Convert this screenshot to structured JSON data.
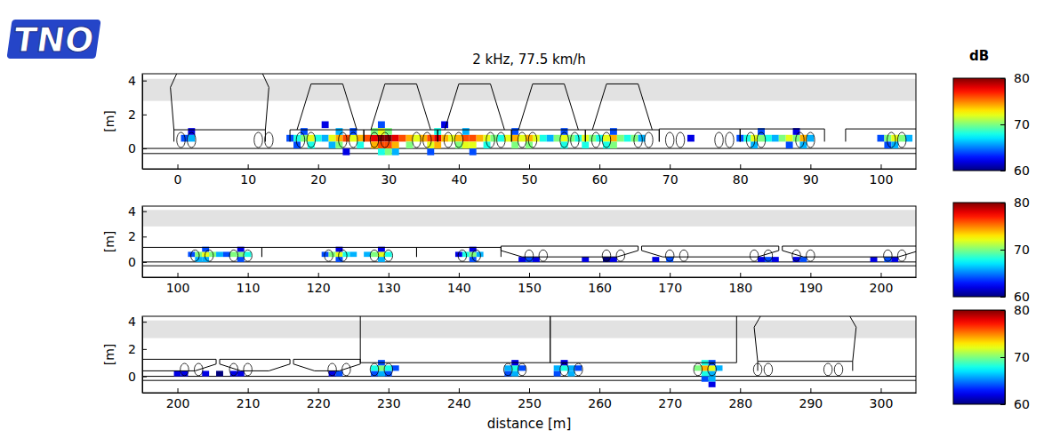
{
  "logo": "TNO",
  "chart_data": [
    {
      "type": "heatmap",
      "title": "2 kHz, 77.5 km/h",
      "y_label": "[m]",
      "xlim": [
        -5,
        105
      ],
      "xticks": [
        0,
        10,
        20,
        30,
        40,
        50,
        60,
        70,
        80,
        90,
        100
      ],
      "ylim": [
        -1.2,
        4.4
      ],
      "yticks": [
        0,
        2,
        4
      ],
      "colorbar_title": "dB",
      "colorbar_range": [
        60,
        80
      ],
      "colorbar_ticks": [
        60,
        70,
        80
      ],
      "cell_size": [
        1,
        0.4
      ],
      "shaded_band": [
        2.8,
        4.1
      ],
      "rails": [
        0,
        -0.3
      ],
      "vehicles": [
        {
          "type": "loco",
          "start": -3,
          "end": 13.5,
          "axles": [
            0.5,
            2,
            11.5,
            13
          ]
        },
        {
          "type": "hopper",
          "start": 16,
          "end": 26.5,
          "axles": [
            17.5,
            19,
            23.5,
            25
          ]
        },
        {
          "type": "hopper",
          "start": 26.5,
          "end": 37,
          "axles": [
            28,
            29.5,
            34,
            35.5
          ]
        },
        {
          "type": "hopper",
          "start": 37,
          "end": 47.5,
          "axles": [
            38.5,
            40,
            44.5,
            46
          ]
        },
        {
          "type": "hopper",
          "start": 47.5,
          "end": 58,
          "axles": [
            49,
            50.5,
            55,
            56.5
          ]
        },
        {
          "type": "hopper",
          "start": 58,
          "end": 68.5,
          "axles": [
            59.5,
            61,
            65.5,
            67
          ]
        },
        {
          "type": "flat",
          "start": 68.5,
          "end": 80,
          "axles": [
            70,
            71.5,
            77,
            78.5
          ]
        },
        {
          "type": "flat",
          "start": 80,
          "end": 92,
          "axles": [
            81.5,
            83,
            88.5,
            90
          ]
        },
        {
          "type": "flat",
          "start": 95,
          "end": 106,
          "axles": [
            101.5,
            103
          ]
        }
      ],
      "cells": [
        [
          1,
          0.6,
          64
        ],
        [
          2,
          0.6,
          66
        ],
        [
          2,
          1.0,
          62
        ],
        [
          16,
          0.6,
          64
        ],
        [
          17,
          0.6,
          68
        ],
        [
          18,
          0.6,
          70
        ],
        [
          19,
          0.6,
          72
        ],
        [
          20,
          0.6,
          68
        ],
        [
          21,
          0.6,
          66
        ],
        [
          22,
          0.6,
          72
        ],
        [
          23,
          0.6,
          74
        ],
        [
          24,
          0.6,
          76
        ],
        [
          25,
          0.6,
          72
        ],
        [
          26,
          0.6,
          74
        ],
        [
          27,
          0.6,
          76
        ],
        [
          28,
          0.6,
          78
        ],
        [
          29,
          0.6,
          80
        ],
        [
          30,
          0.6,
          80
        ],
        [
          31,
          0.6,
          78
        ],
        [
          32,
          0.6,
          76
        ],
        [
          33,
          0.6,
          74
        ],
        [
          34,
          0.6,
          72
        ],
        [
          35,
          0.6,
          74
        ],
        [
          36,
          0.6,
          76
        ],
        [
          37,
          0.6,
          78
        ],
        [
          38,
          0.6,
          74
        ],
        [
          39,
          0.6,
          72
        ],
        [
          40,
          0.6,
          74
        ],
        [
          41,
          0.6,
          76
        ],
        [
          42,
          0.6,
          76
        ],
        [
          43,
          0.6,
          74
        ],
        [
          44,
          0.6,
          72
        ],
        [
          45,
          0.6,
          70
        ],
        [
          46,
          0.6,
          68
        ],
        [
          47,
          0.6,
          72
        ],
        [
          48,
          0.6,
          74
        ],
        [
          49,
          0.6,
          72
        ],
        [
          50,
          0.6,
          74
        ],
        [
          51,
          0.6,
          72
        ],
        [
          52,
          0.6,
          68
        ],
        [
          53,
          0.6,
          66
        ],
        [
          54,
          0.6,
          70
        ],
        [
          55,
          0.6,
          72
        ],
        [
          56,
          0.6,
          70
        ],
        [
          57,
          0.6,
          68
        ],
        [
          58,
          0.6,
          72
        ],
        [
          59,
          0.6,
          70
        ],
        [
          60,
          0.6,
          68
        ],
        [
          61,
          0.6,
          72
        ],
        [
          62,
          0.6,
          74
        ],
        [
          63,
          0.6,
          70
        ],
        [
          64,
          0.6,
          68
        ],
        [
          65,
          0.6,
          70
        ],
        [
          66,
          0.6,
          66
        ],
        [
          17,
          0.2,
          64
        ],
        [
          19,
          0.2,
          68
        ],
        [
          22,
          0.2,
          66
        ],
        [
          23,
          0.2,
          70
        ],
        [
          26,
          0.2,
          68
        ],
        [
          28,
          0.2,
          74
        ],
        [
          29,
          0.2,
          76
        ],
        [
          30,
          0.2,
          76
        ],
        [
          31,
          0.2,
          74
        ],
        [
          33,
          0.2,
          70
        ],
        [
          36,
          0.2,
          72
        ],
        [
          37,
          0.2,
          74
        ],
        [
          40,
          0.2,
          70
        ],
        [
          41,
          0.2,
          72
        ],
        [
          42,
          0.2,
          72
        ],
        [
          44,
          0.2,
          68
        ],
        [
          48,
          0.2,
          70
        ],
        [
          50,
          0.2,
          70
        ],
        [
          55,
          0.2,
          68
        ],
        [
          58,
          0.2,
          68
        ],
        [
          61,
          0.2,
          68
        ],
        [
          62,
          0.2,
          70
        ],
        [
          18,
          1.0,
          64
        ],
        [
          23,
          1.0,
          66
        ],
        [
          25,
          1.0,
          64
        ],
        [
          28,
          1.0,
          70
        ],
        [
          29,
          1.0,
          72
        ],
        [
          30,
          1.0,
          70
        ],
        [
          37,
          1.0,
          68
        ],
        [
          41,
          1.0,
          66
        ],
        [
          48,
          1.0,
          64
        ],
        [
          55,
          1.0,
          64
        ],
        [
          62,
          1.0,
          64
        ],
        [
          24,
          -0.2,
          62
        ],
        [
          29,
          -0.2,
          68
        ],
        [
          30,
          -0.2,
          70
        ],
        [
          31,
          -0.2,
          66
        ],
        [
          36,
          -0.2,
          64
        ],
        [
          42,
          -0.2,
          64
        ],
        [
          21,
          1.4,
          62
        ],
        [
          29,
          1.4,
          64
        ],
        [
          38,
          1.4,
          62
        ],
        [
          73,
          0.6,
          62
        ],
        [
          80,
          0.6,
          64
        ],
        [
          81,
          0.6,
          68
        ],
        [
          82,
          0.6,
          72
        ],
        [
          83,
          0.6,
          70
        ],
        [
          84,
          0.6,
          68
        ],
        [
          85,
          0.6,
          66
        ],
        [
          86,
          0.6,
          70
        ],
        [
          87,
          0.6,
          72
        ],
        [
          88,
          0.6,
          70
        ],
        [
          89,
          0.6,
          74
        ],
        [
          90,
          0.6,
          66
        ],
        [
          82,
          0.2,
          66
        ],
        [
          87,
          0.2,
          64
        ],
        [
          89,
          0.2,
          66
        ],
        [
          83,
          1.0,
          64
        ],
        [
          88,
          1.0,
          62
        ],
        [
          100,
          0.6,
          64
        ],
        [
          101,
          0.6,
          70
        ],
        [
          102,
          0.6,
          72
        ],
        [
          103,
          0.6,
          70
        ],
        [
          104,
          0.6,
          66
        ],
        [
          101,
          0.2,
          64
        ],
        [
          102,
          0.2,
          66
        ]
      ]
    },
    {
      "type": "heatmap",
      "y_label": "[m]",
      "xlim": [
        95,
        205
      ],
      "xticks": [
        100,
        110,
        120,
        130,
        140,
        150,
        160,
        170,
        180,
        190,
        200
      ],
      "ylim": [
        -1.2,
        4.4
      ],
      "yticks": [
        0,
        2,
        4
      ],
      "colorbar_range": [
        60,
        80
      ],
      "colorbar_ticks": [
        60,
        70,
        80
      ],
      "cell_size": [
        1,
        0.4
      ],
      "shaded_band": [
        2.8,
        4.1
      ],
      "rails": [
        0,
        -0.3
      ],
      "vehicles": [
        {
          "type": "flat",
          "start": 92,
          "end": 112,
          "axles": [
            102.5,
            104.5,
            108,
            110
          ]
        },
        {
          "type": "flat",
          "start": 112,
          "end": 134,
          "axles": [
            121.5,
            123.5,
            128,
            130
          ]
        },
        {
          "type": "flat",
          "start": 134,
          "end": 146,
          "axles": [
            140.5,
            142.5
          ]
        },
        {
          "type": "well",
          "start": 146,
          "end": 165.5,
          "axles": [
            150,
            152,
            161,
            163
          ]
        },
        {
          "type": "well",
          "start": 166,
          "end": 185.5,
          "axles": [
            170,
            172,
            182,
            184
          ]
        },
        {
          "type": "well",
          "start": 186,
          "end": 205.5,
          "axles": [
            188,
            190,
            201,
            203
          ]
        }
      ],
      "cells": [
        [
          102,
          0.6,
          64
        ],
        [
          103,
          0.6,
          70
        ],
        [
          104,
          0.6,
          72
        ],
        [
          105,
          0.6,
          70
        ],
        [
          106,
          0.6,
          66
        ],
        [
          107,
          0.6,
          64
        ],
        [
          108,
          0.6,
          70
        ],
        [
          109,
          0.6,
          70
        ],
        [
          110,
          0.6,
          68
        ],
        [
          121,
          0.6,
          64
        ],
        [
          122,
          0.6,
          70
        ],
        [
          123,
          0.6,
          72
        ],
        [
          124,
          0.6,
          68
        ],
        [
          125,
          0.6,
          66
        ],
        [
          127,
          0.6,
          66
        ],
        [
          128,
          0.6,
          70
        ],
        [
          129,
          0.6,
          72
        ],
        [
          130,
          0.6,
          68
        ],
        [
          140,
          0.6,
          62
        ],
        [
          141,
          0.6,
          68
        ],
        [
          142,
          0.6,
          70
        ],
        [
          143,
          0.6,
          66
        ],
        [
          103,
          0.2,
          66
        ],
        [
          104,
          0.2,
          66
        ],
        [
          109,
          0.2,
          64
        ],
        [
          123,
          0.2,
          64
        ],
        [
          129,
          0.2,
          66
        ],
        [
          142,
          0.2,
          64
        ],
        [
          149,
          0.2,
          62
        ],
        [
          150,
          0.2,
          64
        ],
        [
          151,
          0.2,
          62
        ],
        [
          158,
          0.2,
          62
        ],
        [
          161,
          0.2,
          60
        ],
        [
          162,
          0.2,
          62
        ],
        [
          168,
          0.2,
          62
        ],
        [
          170,
          0.2,
          64
        ],
        [
          183,
          0.2,
          62
        ],
        [
          184,
          0.2,
          64
        ],
        [
          185,
          0.2,
          62
        ],
        [
          188,
          0.2,
          62
        ],
        [
          189,
          0.2,
          64
        ],
        [
          199,
          0.2,
          62
        ],
        [
          201,
          0.2,
          64
        ],
        [
          202,
          0.2,
          62
        ],
        [
          104,
          1.0,
          64
        ],
        [
          109,
          1.0,
          62
        ],
        [
          123,
          1.0,
          62
        ],
        [
          129,
          1.0,
          62
        ],
        [
          142,
          1.0,
          62
        ]
      ]
    },
    {
      "type": "heatmap",
      "y_label": "[m]",
      "x_label": "distance [m]",
      "xlim": [
        195,
        305
      ],
      "xticks": [
        200,
        210,
        220,
        230,
        240,
        250,
        260,
        270,
        280,
        290,
        300
      ],
      "ylim": [
        -1.2,
        4.4
      ],
      "yticks": [
        0,
        2,
        4
      ],
      "colorbar_range": [
        60,
        80
      ],
      "colorbar_ticks": [
        60,
        70,
        80
      ],
      "cell_size": [
        1,
        0.4
      ],
      "shaded_band": [
        2.8,
        4.1
      ],
      "rails": [
        0,
        -0.3
      ],
      "vehicles": [
        {
          "type": "well",
          "start": 186,
          "end": 205.5,
          "axles": [
            201,
            203
          ]
        },
        {
          "type": "well",
          "start": 206,
          "end": 216,
          "axles": [
            208,
            210
          ]
        },
        {
          "type": "well",
          "start": 216.5,
          "end": 226,
          "axles": [
            222,
            224
          ]
        },
        {
          "type": "box",
          "start": 226,
          "end": 253,
          "axles": [
            228,
            230,
            247,
            249
          ]
        },
        {
          "type": "box",
          "start": 253,
          "end": 279.5,
          "axles": [
            255,
            257,
            274,
            276
          ]
        },
        {
          "type": "loco",
          "start": 280,
          "end": 297,
          "axles": [
            282.5,
            284,
            292.5,
            294
          ]
        }
      ],
      "cells": [
        [
          200,
          0.2,
          62
        ],
        [
          201,
          0.2,
          62
        ],
        [
          204,
          0.2,
          62
        ],
        [
          206,
          0.2,
          60
        ],
        [
          208,
          0.2,
          62
        ],
        [
          209,
          0.2,
          62
        ],
        [
          222,
          0.2,
          62
        ],
        [
          223,
          0.2,
          64
        ],
        [
          228,
          0.2,
          64
        ],
        [
          229,
          0.2,
          66
        ],
        [
          230,
          0.2,
          64
        ],
        [
          247,
          0.2,
          64
        ],
        [
          248,
          0.2,
          66
        ],
        [
          254,
          0.2,
          64
        ],
        [
          256,
          0.2,
          66
        ],
        [
          275,
          0.2,
          68
        ],
        [
          276,
          0.2,
          66
        ],
        [
          228,
          0.6,
          68
        ],
        [
          229,
          0.6,
          70
        ],
        [
          230,
          0.6,
          68
        ],
        [
          231,
          0.6,
          64
        ],
        [
          247,
          0.6,
          66
        ],
        [
          248,
          0.6,
          68
        ],
        [
          249,
          0.6,
          64
        ],
        [
          254,
          0.6,
          66
        ],
        [
          255,
          0.6,
          68
        ],
        [
          256,
          0.6,
          66
        ],
        [
          257,
          0.6,
          64
        ],
        [
          274,
          0.6,
          70
        ],
        [
          275,
          0.6,
          74
        ],
        [
          276,
          0.6,
          72
        ],
        [
          277,
          0.6,
          66
        ],
        [
          229,
          1.0,
          64
        ],
        [
          248,
          1.0,
          62
        ],
        [
          255,
          1.0,
          62
        ],
        [
          275,
          1.0,
          68
        ],
        [
          276,
          1.0,
          64
        ],
        [
          275,
          -0.2,
          64
        ],
        [
          276,
          -0.2,
          66
        ],
        [
          276,
          -0.6,
          62
        ]
      ]
    }
  ]
}
